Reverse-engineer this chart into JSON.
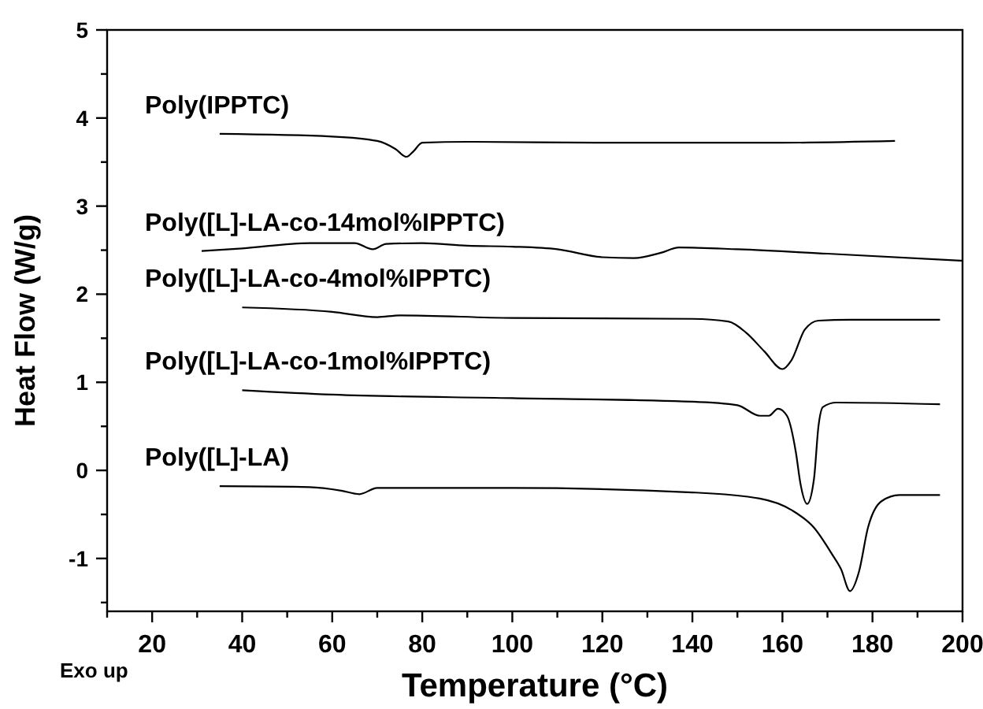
{
  "chart_data": {
    "type": "line",
    "xlabel": "Temperature (°C)",
    "ylabel": "Heat Flow (W/g)",
    "annotations": [
      "Exo up"
    ],
    "xlim": [
      10,
      200
    ],
    "ylim": [
      -1.6,
      5
    ],
    "xticks": [
      {
        "value": 10,
        "label": null
      },
      20,
      {
        "value": 30,
        "label": null
      },
      40,
      {
        "value": 50,
        "label": null
      },
      60,
      {
        "value": 70,
        "label": null
      },
      80,
      {
        "value": 90,
        "label": null
      },
      100,
      {
        "value": 110,
        "label": null
      },
      120,
      {
        "value": 130,
        "label": null
      },
      140,
      {
        "value": 150,
        "label": null
      },
      160,
      {
        "value": 170,
        "label": null
      },
      180,
      {
        "value": 190,
        "label": null
      },
      200
    ],
    "yticks": [
      {
        "value": -1.5,
        "label": null
      },
      -1,
      {
        "value": -0.5,
        "label": null
      },
      0,
      {
        "value": 0.5,
        "label": null
      },
      1,
      {
        "value": 1.5,
        "label": null
      },
      2,
      {
        "value": 2.5,
        "label": null
      },
      3,
      {
        "value": 3.5,
        "label": null
      },
      4,
      {
        "value": 4.5,
        "label": null
      },
      5
    ],
    "grid": false,
    "marker": "none",
    "line_style": "solid",
    "series": [
      {
        "name": "Poly(IPPTC)",
        "color": "#000000",
        "x": [
          35,
          60,
          70,
          74,
          76.5,
          78,
          80,
          90,
          120,
          160,
          185
        ],
        "values": [
          3.82,
          3.79,
          3.74,
          3.65,
          3.56,
          3.62,
          3.72,
          3.73,
          3.72,
          3.72,
          3.74
        ]
      },
      {
        "name": "Poly([L]-LA-co-14mol%IPPTC)",
        "color": "#000000",
        "x": [
          31,
          40,
          55,
          65,
          69,
          72,
          80,
          90,
          100,
          110,
          120,
          127,
          133,
          137,
          150,
          170,
          200
        ],
        "values": [
          2.49,
          2.52,
          2.58,
          2.58,
          2.51,
          2.57,
          2.58,
          2.55,
          2.54,
          2.51,
          2.42,
          2.41,
          2.47,
          2.53,
          2.51,
          2.46,
          2.38
        ]
      },
      {
        "name": "Poly([L]-LA-co-4mol%IPPTC)",
        "color": "#000000",
        "x": [
          40,
          60,
          70,
          75,
          100,
          140,
          148,
          152,
          156,
          160,
          162,
          165,
          168,
          175,
          195
        ],
        "values": [
          1.85,
          1.8,
          1.74,
          1.76,
          1.73,
          1.72,
          1.69,
          1.56,
          1.35,
          1.15,
          1.25,
          1.6,
          1.7,
          1.71,
          1.71
        ]
      },
      {
        "name": "Poly([L]-LA-co-1mol%IPPTC)",
        "color": "#000000",
        "x": [
          40,
          60,
          100,
          140,
          150,
          155,
          157,
          159,
          161,
          163,
          164,
          165.5,
          167,
          168,
          169,
          172,
          195
        ],
        "values": [
          0.91,
          0.86,
          0.82,
          0.78,
          0.74,
          0.62,
          0.62,
          0.7,
          0.62,
          0.2,
          -0.15,
          -0.38,
          -0.1,
          0.5,
          0.72,
          0.77,
          0.75
        ]
      },
      {
        "name": "Poly([L]-LA)",
        "color": "#000000",
        "x": [
          35,
          55,
          62,
          66,
          70,
          100,
          140,
          155,
          162,
          167,
          171,
          173,
          175,
          177,
          179,
          182,
          186,
          195
        ],
        "values": [
          -0.18,
          -0.19,
          -0.23,
          -0.27,
          -0.2,
          -0.2,
          -0.25,
          -0.32,
          -0.45,
          -0.65,
          -0.95,
          -1.12,
          -1.37,
          -1.15,
          -0.65,
          -0.35,
          -0.28,
          -0.28
        ]
      }
    ]
  }
}
